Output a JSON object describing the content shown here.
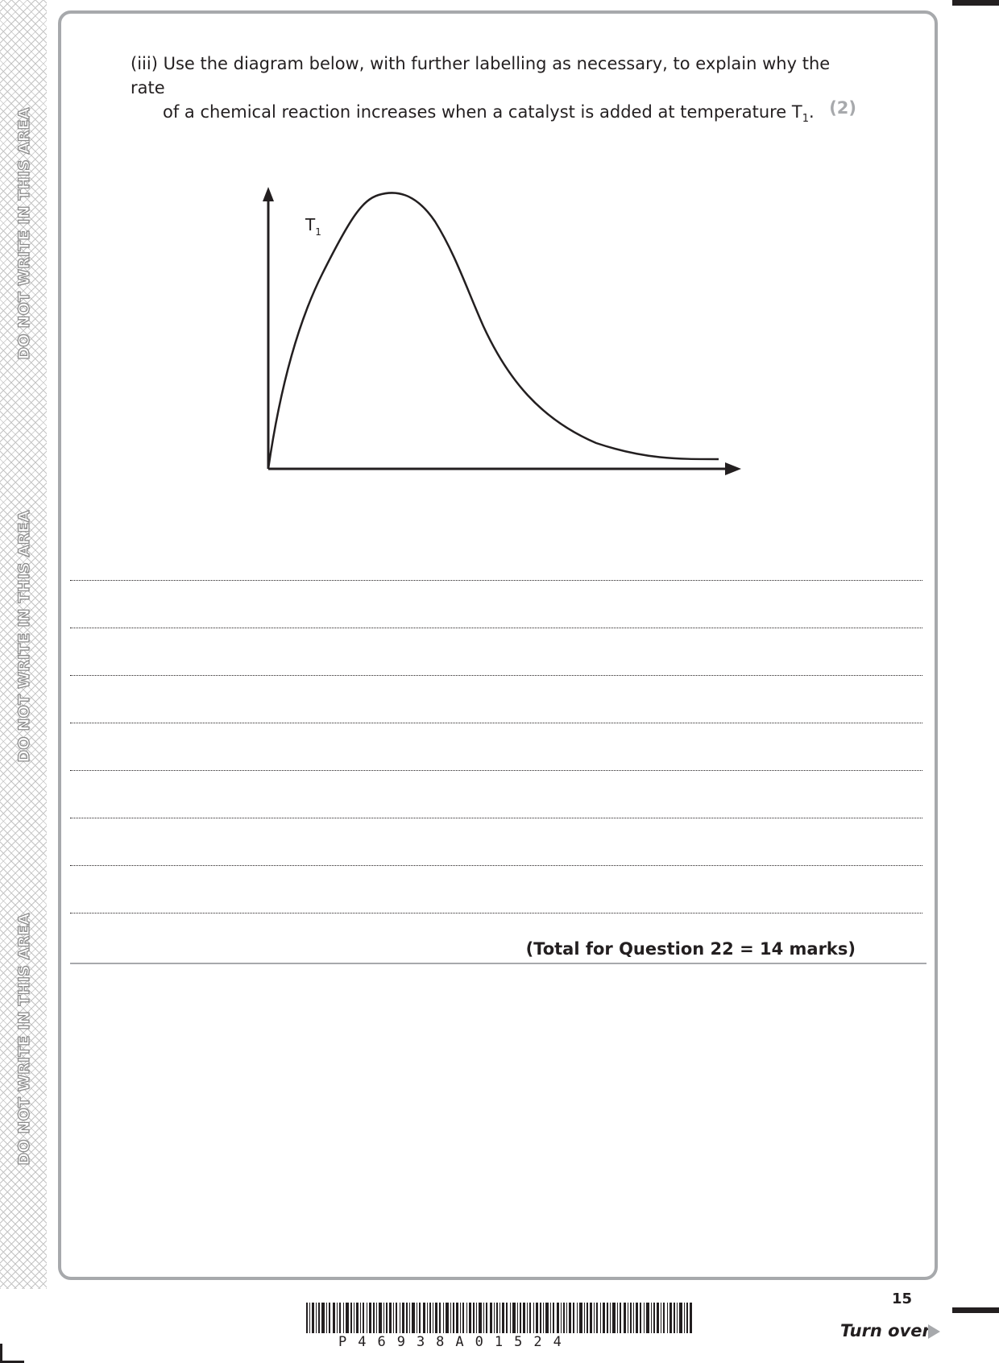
{
  "side_warning": {
    "text": "DO NOT WRITE IN THIS AREA"
  },
  "question": {
    "number": "(iii)",
    "line1": "Use the diagram below, with further labelling as necessary, to explain why the rate",
    "line2": "of a chemical reaction increases when a catalyst is added at temperature T",
    "line2_subscript": "1",
    "line2_end": ".",
    "marks": "(2)"
  },
  "diagram": {
    "curve_label": "T",
    "curve_label_subscript": "1"
  },
  "answer_lines_count": 8,
  "total": "(Total for Question 22 = 14 marks)",
  "footer": {
    "page_number": "15",
    "turn_over": "Turn over",
    "barcode_digits": "P46938A01524"
  }
}
